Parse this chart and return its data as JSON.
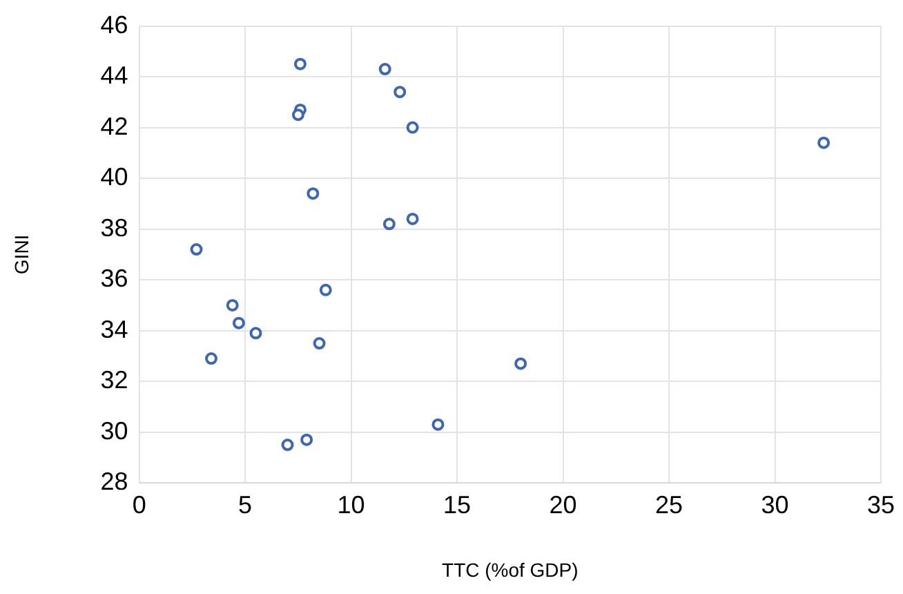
{
  "chart_data": {
    "type": "scatter",
    "xlabel": "TTC (%of GDP)",
    "ylabel": "GINI",
    "series": [
      {
        "color": "#3d67b0",
        "x": [
          7.6,
          11.6,
          12.3,
          7.6,
          7.5,
          12.9,
          32.3,
          8.2,
          12.9,
          11.8,
          2.7,
          8.8,
          4.4,
          4.7,
          5.5,
          8.5,
          3.4,
          18.0,
          14.1,
          7.9,
          7.0
        ],
        "values": [
          44.5,
          44.3,
          43.4,
          42.7,
          42.5,
          42.0,
          41.4,
          39.4,
          38.4,
          38.2,
          37.2,
          35.6,
          35.0,
          34.3,
          33.9,
          33.5,
          32.9,
          32.7,
          30.3,
          29.7,
          29.5
        ]
      }
    ],
    "xlim": [
      0,
      35
    ],
    "xticks": [
      0,
      5,
      10,
      15,
      20,
      25,
      30,
      35
    ],
    "ylim": [
      28,
      46
    ],
    "yticks": [
      28,
      30,
      32,
      34,
      36,
      38,
      40,
      42,
      44,
      46
    ],
    "grid": true,
    "legend": false,
    "marker": "circle"
  }
}
